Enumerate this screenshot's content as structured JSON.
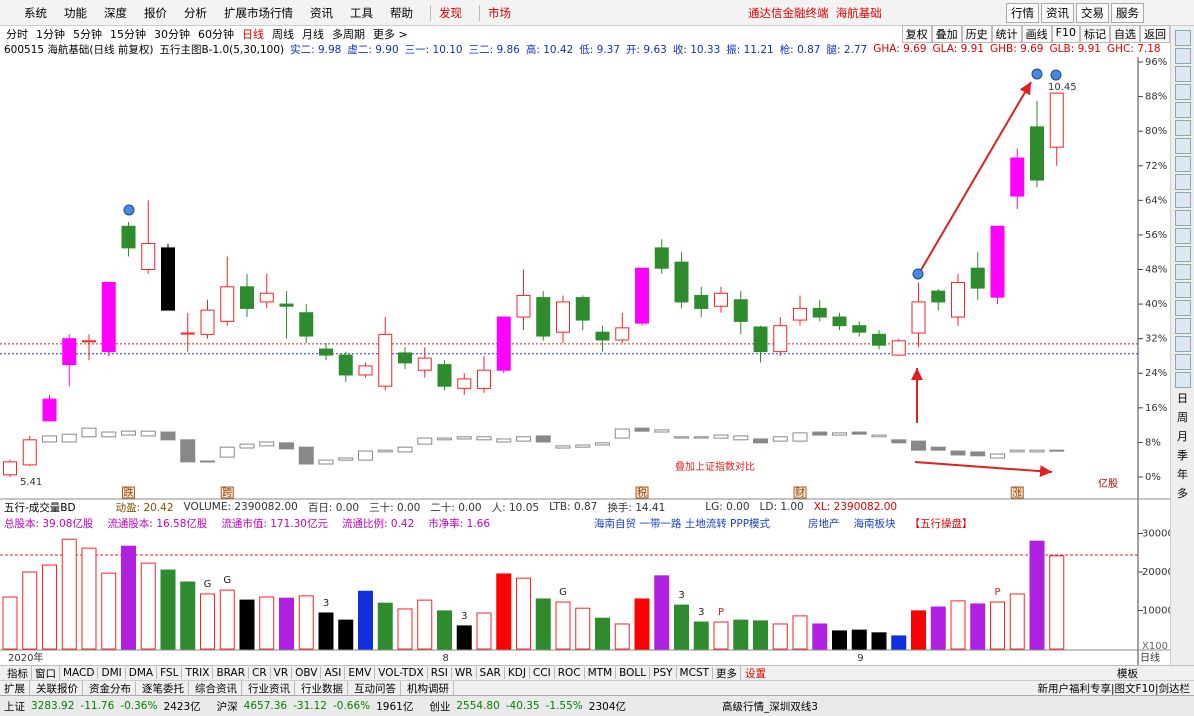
{
  "menu": {
    "items": [
      "系统",
      "功能",
      "深度",
      "报价",
      "分析",
      "扩展市场行情",
      "资讯",
      "工具",
      "帮助"
    ],
    "find": "发现",
    "market": "市场",
    "title": "通达信金融终端  海航基础",
    "right": [
      "行情",
      "资讯",
      "交易",
      "服务"
    ]
  },
  "periods": {
    "items": [
      "分时",
      "1分钟",
      "5分钟",
      "15分钟",
      "30分钟",
      "60分钟",
      "日线",
      "周线",
      "月线",
      "多周期",
      "更多 >"
    ],
    "active": 6,
    "tools": [
      "复权",
      "叠加",
      "历史",
      "统计",
      "画线",
      "F10",
      "标记",
      "自选",
      "返回"
    ]
  },
  "info": {
    "stock": "600515 海航基础(日线 前复权)",
    "indicator": "五行主图B-1.0(5,30,100)",
    "fields": [
      "实二: 9.98",
      "虚二: 9.90",
      "三一: 10.10",
      "三二: 9.86",
      "高: 10.42",
      "低: 9.37",
      "开: 9.63",
      "收: 10.33",
      "振: 11.21",
      "枪: 0.87",
      "腿: 2.77"
    ],
    "right_fields": [
      "GHA: 9.69",
      "GLA: 9.91",
      "GHB: 9.69",
      "GLB: 9.91",
      "GHC: 7.18"
    ]
  },
  "chart_data": [
    {
      "type": "candlestick",
      "ylim": [
        -5,
        97
      ],
      "yticks": [
        {
          "value": 96,
          "label": "96%"
        },
        {
          "value": 88,
          "label": "88%"
        },
        {
          "value": 80,
          "label": "80%"
        },
        {
          "value": 72,
          "label": "72%"
        },
        {
          "value": 64,
          "label": "64%"
        },
        {
          "value": 56,
          "label": "56%"
        },
        {
          "value": 48,
          "label": "48%"
        },
        {
          "value": 40,
          "label": "40%"
        },
        {
          "value": 32,
          "label": "32%"
        },
        {
          "value": 24,
          "label": "24%"
        },
        {
          "value": 16,
          "label": "16%"
        },
        {
          "value": 8,
          "label": "8%"
        },
        {
          "value": 0,
          "label": "0%"
        }
      ],
      "up_color": "#ff2020",
      "open": [
        0.5,
        2.8,
        13,
        26,
        31.5,
        29,
        58,
        48,
        53,
        33.3,
        33,
        36,
        44,
        40.5,
        40,
        38,
        29.6,
        28.2,
        23.6,
        21,
        28.7,
        24.7,
        26,
        20.5,
        20.5,
        24.7,
        37,
        41.5,
        33.5,
        41.5,
        33.5,
        31.7,
        35.6,
        53,
        49.7,
        42,
        39.5,
        41,
        34.7,
        29,
        36.3,
        39,
        37,
        35,
        33,
        28.2,
        33.3,
        43,
        37,
        48.3,
        41.6,
        65,
        81,
        76.3
      ],
      "high": [
        4,
        9.5,
        19,
        33,
        33,
        45,
        59,
        64,
        54,
        38,
        41,
        51,
        47,
        47,
        43,
        40,
        31,
        29,
        26.5,
        37,
        30,
        30,
        27,
        24,
        28,
        37,
        48,
        43,
        42,
        42,
        35,
        38,
        48.3,
        55,
        52,
        44,
        44,
        43,
        35,
        37,
        42,
        41,
        38,
        36,
        34,
        32,
        45,
        43.5,
        47,
        52,
        58,
        76,
        87,
        89
      ],
      "low": [
        0,
        2.5,
        13,
        21,
        27,
        28,
        51,
        47,
        38.6,
        29,
        32,
        35,
        37,
        39,
        32,
        31,
        27,
        22,
        23,
        20,
        25,
        23,
        20,
        19,
        19.5,
        24,
        34,
        31.5,
        31,
        34,
        29,
        31,
        35,
        47,
        39,
        37,
        38,
        33,
        26.5,
        28,
        35,
        36,
        34,
        32.5,
        29.5,
        28,
        30,
        38.5,
        35,
        41,
        40,
        62,
        67,
        72
      ],
      "close": [
        3.5,
        8.6,
        18,
        32,
        31.5,
        45,
        53,
        54,
        38.6,
        33.3,
        38.6,
        44,
        39,
        42.5,
        39.5,
        32.6,
        28.2,
        23.6,
        25.7,
        33,
        26.4,
        27.5,
        21,
        22.7,
        24.7,
        37,
        42,
        32.6,
        40.5,
        36.3,
        31.7,
        34.5,
        48.3,
        48.3,
        40.5,
        39,
        42.5,
        36,
        29,
        35,
        39,
        37,
        35,
        33.5,
        30.5,
        31.5,
        40.5,
        40.5,
        45,
        43.7,
        58,
        73.8,
        68.7,
        88.8
      ],
      "colors": [
        "#ff2020",
        "#ff2020",
        "#ff00ff",
        "#ff00ff",
        "#ff2020",
        "#ff00ff",
        "#2e8b2e",
        "#ff2020",
        "#000000",
        "#ff2020",
        "#ff2020",
        "#ff2020",
        "#2e8b2e",
        "#ff2020",
        "#2e8b2e",
        "#2e8b2e",
        "#2e8b2e",
        "#2e8b2e",
        "#ff2020",
        "#ff2020",
        "#2e8b2e",
        "#ff2020",
        "#2e8b2e",
        "#ff2020",
        "#ff2020",
        "#ff00ff",
        "#ff2020",
        "#2e8b2e",
        "#ff2020",
        "#2e8b2e",
        "#2e8b2e",
        "#ff2020",
        "#ff00ff",
        "#2e8b2e",
        "#2e8b2e",
        "#2e8b2e",
        "#ff2020",
        "#2e8b2e",
        "#2e8b2e",
        "#ff2020",
        "#ff2020",
        "#2e8b2e",
        "#2e8b2e",
        "#2e8b2e",
        "#2e8b2e",
        "#ff2020",
        "#ff2020",
        "#2e8b2e",
        "#ff2020",
        "#2e8b2e",
        "#ff00ff",
        "#ff00ff",
        "#2e8b2e",
        "#ff2020"
      ],
      "overlay": {
        "color": "#888888",
        "open": [
          null,
          null,
          8.1,
          8.1,
          9.3,
          9.3,
          9.7,
          9.5,
          10.4,
          8.6,
          3.7,
          4.6,
          6.7,
          7.2,
          7.9,
          6.9,
          3.0,
          3.9,
          3.9,
          5.8,
          5.8,
          7.6,
          8.6,
          8.8,
          8.6,
          8.1,
          8.3,
          9.5,
          6.7,
          6.9,
          7.4,
          9.0,
          11.3,
          10.4,
          9.0,
          9.0,
          9.0,
          8.6,
          8.8,
          8.3,
          8.3,
          10.4,
          9.7,
          10.4,
          9.3,
          8.6,
          8.3,
          6.9,
          6.0,
          5.8,
          4.4,
          5.8,
          5.8,
          6.0
        ],
        "close": [
          null,
          null,
          9.5,
          9.9,
          11.3,
          10.4,
          10.6,
          10.6,
          8.6,
          3.5,
          3.7,
          6.9,
          7.6,
          8.1,
          6.5,
          3.0,
          3.9,
          4.4,
          6.0,
          6.2,
          6.9,
          9.0,
          9.0,
          9.3,
          9.3,
          8.8,
          9.3,
          8.1,
          7.2,
          7.4,
          7.9,
          11.1,
          10.6,
          10.9,
          9.3,
          9.3,
          9.7,
          9.5,
          7.9,
          9.3,
          10.2,
          9.7,
          10.2,
          9.9,
          9.7,
          7.9,
          6.2,
          6.2,
          5.1,
          4.9,
          5.3,
          6.2,
          6.2,
          6.2
        ]
      },
      "ref_lines": [
        {
          "value": 30.8,
          "color": "#d02020"
        },
        {
          "value": 28.5,
          "color": "#2030c0"
        }
      ],
      "event_labels": [
        null,
        null,
        null,
        null,
        null,
        null,
        "跌",
        null,
        null,
        null,
        null,
        "跨",
        null,
        null,
        null,
        null,
        null,
        null,
        null,
        null,
        null,
        null,
        null,
        null,
        null,
        null,
        null,
        null,
        null,
        null,
        null,
        null,
        "税",
        null,
        null,
        null,
        null,
        null,
        null,
        null,
        "财",
        null,
        null,
        null,
        null,
        null,
        null,
        null,
        null,
        null,
        null,
        "涨",
        null,
        null
      ],
      "annotation": "叠加上证指数对比",
      "high_label": "10.45",
      "low_label": "5.41",
      "unit": "亿股"
    },
    {
      "type": "bar",
      "ylim": [
        0,
        35000
      ],
      "yticks": [
        10000,
        20000,
        30000
      ],
      "up_color": "#ff2020",
      "values": [
        13500,
        20000,
        21800,
        28500,
        26200,
        19700,
        26700,
        22300,
        20500,
        17400,
        14300,
        15300,
        12700,
        13500,
        13200,
        13800,
        9350,
        7500,
        15000,
        11900,
        10400,
        12700,
        9900,
        6000,
        9350,
        19500,
        18400,
        13000,
        12200,
        10600,
        8000,
        6500,
        13000,
        19000,
        11400,
        7000,
        7000,
        7500,
        7300,
        6500,
        8600,
        6500,
        4700,
        4900,
        4200,
        3400,
        9900,
        10900,
        12500,
        11700,
        12200,
        14300,
        28000,
        24200
      ],
      "colors": [
        "#ff2020",
        "#ff2020",
        "#ff2020",
        "#ff2020",
        "#ff2020",
        "#ff2020",
        "#b020e0",
        "#ff2020",
        "#2e8b2e",
        "#2e8b2e",
        "#ff2020",
        "#ff2020",
        "#000000",
        "#ff2020",
        "#b020e0",
        "#ff2020",
        "#000000",
        "#000000",
        "#1030e0",
        "#2e8b2e",
        "#ff2020",
        "#ff2020",
        "#2e8b2e",
        "#000000",
        "#ff2020",
        "#ff0000",
        "#ff2020",
        "#2e8b2e",
        "#ff2020",
        "#ff2020",
        "#2e8b2e",
        "#ff2020",
        "#ff0000",
        "#b020e0",
        "#2e8b2e",
        "#2e8b2e",
        "#ff2020",
        "#2e8b2e",
        "#2e8b2e",
        "#ff2020",
        "#ff2020",
        "#b020e0",
        "#000000",
        "#000000",
        "#000000",
        "#1030e0",
        "#ff0000",
        "#b020e0",
        "#ff2020",
        "#b020e0",
        "#ff2020",
        "#ff2020",
        "#b020e0",
        "#ff2020"
      ],
      "categories": [
        "2020年",
        null,
        null,
        null,
        null,
        null,
        null,
        null,
        null,
        null,
        null,
        null,
        null,
        null,
        null,
        null,
        null,
        null,
        null,
        null,
        null,
        null,
        "8",
        null,
        null,
        null,
        null,
        null,
        null,
        null,
        null,
        null,
        null,
        null,
        null,
        null,
        null,
        null,
        null,
        null,
        null,
        null,
        null,
        "9",
        null,
        null,
        null,
        null,
        null,
        null,
        null,
        null,
        null,
        null
      ],
      "bar_labels": [
        null,
        null,
        null,
        null,
        null,
        null,
        null,
        null,
        null,
        null,
        "G",
        "G",
        null,
        null,
        null,
        null,
        "3",
        null,
        null,
        null,
        null,
        null,
        null,
        "3",
        null,
        null,
        null,
        null,
        "G",
        null,
        null,
        null,
        null,
        null,
        "3",
        "3",
        "P",
        null,
        null,
        null,
        null,
        null,
        null,
        null,
        null,
        null,
        null,
        null,
        null,
        null,
        "P",
        null,
        null,
        null
      ],
      "ref_line": 24400,
      "unit_label": "X100",
      "period_label": "日线"
    }
  ],
  "volume_info": {
    "indicator": "五行-成交量BD",
    "fields": [
      "动盈: 20.42",
      "VOLUME: 2390082.00",
      "百日: 0.00",
      "三十: 0.00",
      "二十: 0.00",
      "人: 10.05",
      "LTB: 0.87",
      "换手: 14.41"
    ],
    "right": [
      "LG: 0.00",
      "LD: 1.00",
      "XL: 2390082.00"
    ]
  },
  "stock_info": {
    "fields": [
      "总股本:  39.08亿股",
      "流通股本:  16.58亿股",
      "流通市值:  171.30亿元",
      "流通比例:  0.42",
      "市净率:  1.66"
    ],
    "concepts": "海南自贸 一带一路 土地流转 PPP模式",
    "sector": "房地产",
    "plate": "海南板块",
    "brand": "【五行操盘】"
  },
  "indicator_tabs": {
    "items": [
      "指标",
      "窗口",
      "MACD",
      "DMI",
      "DMA",
      "FSL",
      "TRIX",
      "BRAR",
      "CR",
      "VR",
      "OBV",
      "ASI",
      "EMV",
      "VOL-TDX",
      "RSI",
      "WR",
      "SAR",
      "KDJ",
      "CCI",
      "ROC",
      "MTM",
      "BOLL",
      "PSY",
      "MCST",
      "更多"
    ],
    "settings": "设置",
    "template": "模板"
  },
  "bottom_tabs": {
    "items": [
      "扩展",
      "关联报价",
      "资金分布",
      "逐笔委托",
      "综合资讯",
      "行业资讯",
      "行业数据",
      "互动问答",
      "机构调研"
    ],
    "promo": "新用户福利专享|图文F10|剑达栏"
  },
  "status": {
    "indices": [
      {
        "name": "上证",
        "price": "3283.92",
        "change": "-11.76",
        "pct": "-0.36%",
        "amount": "2423亿"
      },
      {
        "name": "沪深",
        "price": "4657.36",
        "change": "-31.12",
        "pct": "-0.66%",
        "amount": "1961亿"
      },
      {
        "name": "创业",
        "price": "2554.80",
        "change": "-40.35",
        "pct": "-1.55%",
        "amount": "2304亿"
      }
    ],
    "feed": "高级行情_深圳双线3"
  },
  "side_periods": [
    "日",
    "周",
    "月",
    "季",
    "年",
    "多"
  ]
}
